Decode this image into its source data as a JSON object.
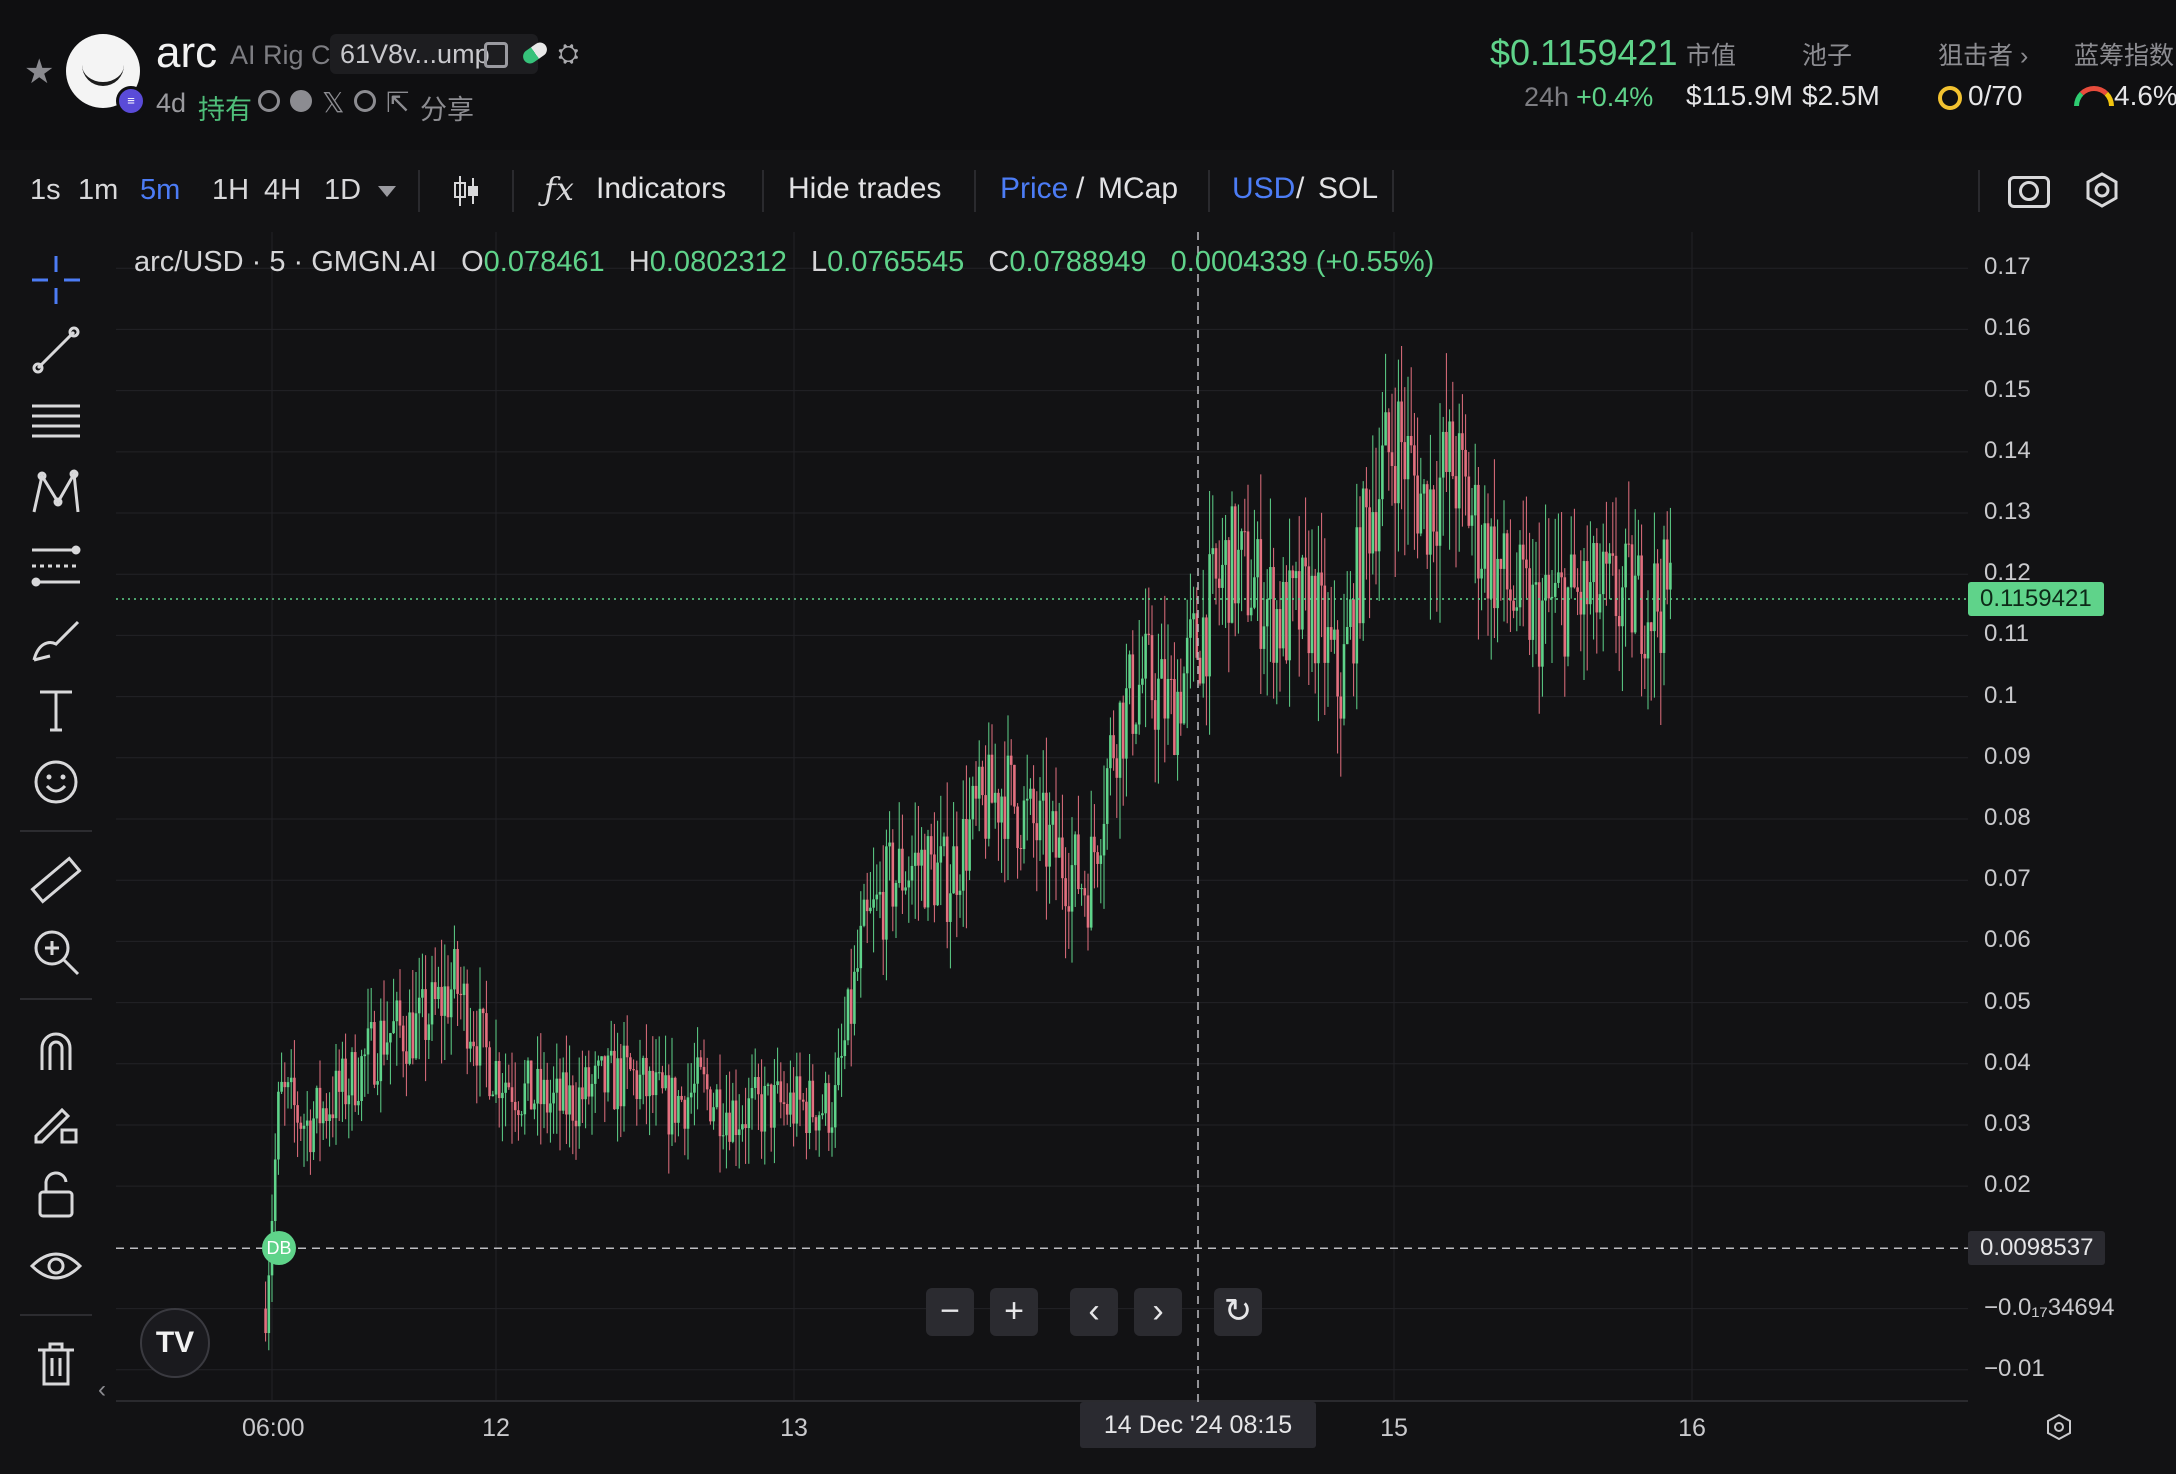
{
  "header": {
    "token_name": "arc",
    "token_fullname": "AI Rig C",
    "address_short": "61V8v...ump",
    "age": "4d",
    "holding_label": "持有",
    "share_label": "分享",
    "price": "$0.1159421",
    "change_label": "24h",
    "change_value": "+0.4%",
    "stats": [
      {
        "label": "市值",
        "value": "$115.9M"
      },
      {
        "label": "池子",
        "value": "$2.5M"
      },
      {
        "label": "狙击者 ›",
        "value": "0/70"
      },
      {
        "label": "蓝筹指数",
        "value": "4.6%"
      }
    ]
  },
  "toolbar": {
    "timeframes": [
      "1s",
      "1m",
      "5m",
      "1H",
      "4H",
      "1D"
    ],
    "active_timeframe": "5m",
    "indicators_label": "Indicators",
    "hide_trades_label": "Hide trades",
    "price_label": "Price",
    "mcap_label": "MCap",
    "usd_label": "USD",
    "sol_label": "SOL",
    "slash": "/"
  },
  "legend": {
    "symbol": "arc/USD · 5 · GMGN.AI",
    "o_key": "O",
    "o_val": "0.078461",
    "h_key": "H",
    "h_val": "0.0802312",
    "l_key": "L",
    "l_val": "0.0765545",
    "c_key": "C",
    "c_val": "0.0788949",
    "change": "0.0004339 (+0.55%)"
  },
  "yaxis": {
    "ticks": [
      "0.17",
      "0.16",
      "0.15",
      "0.14",
      "0.13",
      "0.12",
      "0.11",
      "0.1",
      "0.09",
      "0.08",
      "0.07",
      "0.06",
      "0.05",
      "0.04",
      "0.03",
      "0.02",
      "−0.0₁₇34694",
      "−0.01"
    ],
    "last_price_tag": "0.1159421",
    "cursor_price_tag": "0.0098537"
  },
  "xaxis": {
    "ticks": [
      "06:00",
      "12",
      "13",
      "15",
      "16"
    ],
    "cursor_tag": "14 Dec '24   08:15"
  },
  "marker": {
    "label": "DB"
  },
  "controls": {
    "zoom_out": "−",
    "zoom_in": "+",
    "left": "‹",
    "right": "›",
    "reset": "↻"
  },
  "logo": {
    "text": "TV"
  },
  "colors": {
    "up": "#5fd38a",
    "down": "#e3707f",
    "accent": "#4c7cf5",
    "bg": "#121214"
  },
  "chart_data": {
    "type": "candlestick",
    "title": "arc/USD · 5 · GMGN.AI",
    "ylim": [
      -0.012,
      0.172
    ],
    "xticks": [
      "06:00",
      "12",
      "13",
      "15",
      "16"
    ],
    "last_price": 0.1159421,
    "open": 0.078461,
    "high": 0.0802312,
    "low": 0.0765545,
    "close": 0.0788949,
    "trend": [
      [
        0.0,
        0.0
      ],
      [
        0.01,
        0.035
      ],
      [
        0.03,
        0.03
      ],
      [
        0.06,
        0.037
      ],
      [
        0.085,
        0.045
      ],
      [
        0.11,
        0.046
      ],
      [
        0.135,
        0.053
      ],
      [
        0.16,
        0.04
      ],
      [
        0.185,
        0.035
      ],
      [
        0.21,
        0.033
      ],
      [
        0.235,
        0.036
      ],
      [
        0.26,
        0.038
      ],
      [
        0.285,
        0.033
      ],
      [
        0.31,
        0.036
      ],
      [
        0.335,
        0.032
      ],
      [
        0.36,
        0.033
      ],
      [
        0.385,
        0.033
      ],
      [
        0.405,
        0.033
      ],
      [
        0.425,
        0.06
      ],
      [
        0.445,
        0.07
      ],
      [
        0.465,
        0.073
      ],
      [
        0.485,
        0.07
      ],
      [
        0.505,
        0.08
      ],
      [
        0.525,
        0.085
      ],
      [
        0.545,
        0.079
      ],
      [
        0.565,
        0.074
      ],
      [
        0.585,
        0.069
      ],
      [
        0.605,
        0.095
      ],
      [
        0.625,
        0.103
      ],
      [
        0.645,
        0.098
      ],
      [
        0.665,
        0.11
      ],
      [
        0.685,
        0.122
      ],
      [
        0.705,
        0.118
      ],
      [
        0.725,
        0.112
      ],
      [
        0.745,
        0.115
      ],
      [
        0.765,
        0.101
      ],
      [
        0.785,
        0.13
      ],
      [
        0.805,
        0.143
      ],
      [
        0.825,
        0.131
      ],
      [
        0.845,
        0.138
      ],
      [
        0.865,
        0.126
      ],
      [
        0.885,
        0.117
      ],
      [
        0.905,
        0.113
      ],
      [
        0.925,
        0.116
      ]
    ]
  }
}
